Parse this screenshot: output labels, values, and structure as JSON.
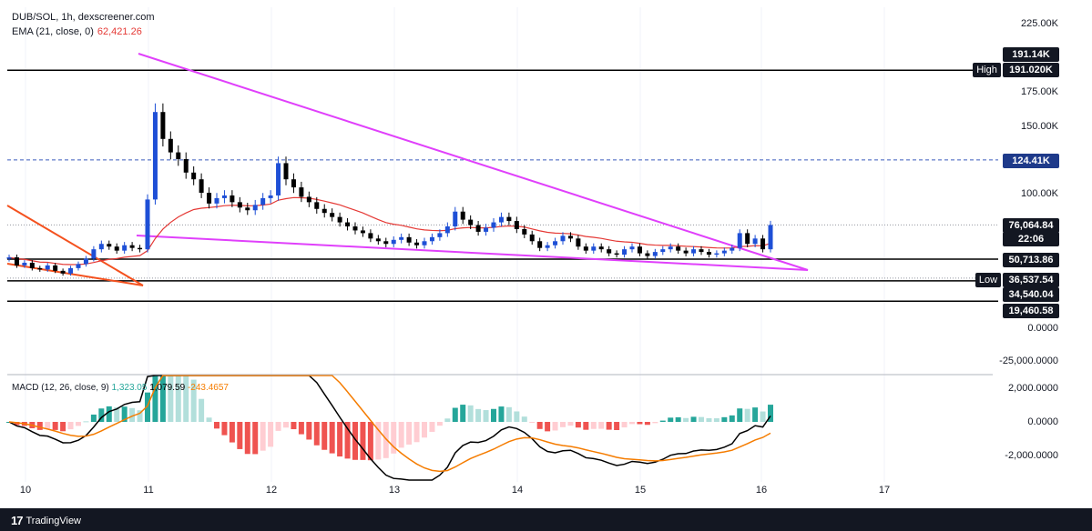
{
  "header": {
    "symbol_line": "DUB/SOL, 1h, dexscreener.com",
    "ema_label": "EMA (21, close, 0)",
    "ema_value": "62,421.26"
  },
  "macd": {
    "label": "MACD (12, 26, close, 9)",
    "value_histogram": "1,323.05",
    "value_macd": "1,079.59",
    "value_signal": "-243.4657"
  },
  "price_axis": [
    "225.00K",
    "175.00K",
    "150.00K",
    "100.00K",
    "0.0000",
    "-25,000.0000"
  ],
  "macd_axis": [
    "2,000.0000",
    "0.0000",
    "-2,000.0000"
  ],
  "tags": {
    "high_price": "191.14K",
    "high_value": "191.020K",
    "high_label": "High",
    "dashed_level": "124.41K",
    "last_price": "76,064.84",
    "countdown": "22:06",
    "support": "50,713.86",
    "low_value": "36,537.54",
    "low_label": "Low",
    "level2": "34,540.04",
    "level3": "19,460.58"
  },
  "x_axis": [
    "10",
    "11",
    "12",
    "13",
    "14",
    "15",
    "16",
    "17"
  ],
  "footer": {
    "brand": "TradingView"
  },
  "colors": {
    "up": "#1e4fd6",
    "down": "#000000",
    "ema": "#e53935",
    "triangle": "#e040fb",
    "wedge": "#f4511e",
    "hist_up_strong": "#26a69a",
    "hist_up_weak": "#b2dfdb",
    "hist_down_strong": "#ef5350",
    "hist_down_weak": "#ffcdd2",
    "macd_line": "#000000",
    "signal_line": "#f57c00"
  },
  "chart_data": {
    "type": "candlestick",
    "title": "DUB/SOL, 1h, dexscreener.com",
    "x": [
      "10",
      "11",
      "12",
      "13",
      "14",
      "15",
      "16",
      "17"
    ],
    "ylim": [
      -25000,
      225000
    ],
    "closes": [
      52000,
      46000,
      48000,
      44000,
      43000,
      46000,
      42000,
      40000,
      44000,
      47000,
      51000,
      58000,
      62000,
      60000,
      57000,
      61000,
      59000,
      58000,
      95000,
      160000,
      140000,
      130000,
      125000,
      115000,
      110000,
      100000,
      92000,
      96000,
      98000,
      93000,
      89000,
      87000,
      91000,
      96000,
      98000,
      122000,
      110000,
      104000,
      97000,
      93000,
      88000,
      85000,
      82000,
      78000,
      75000,
      72000,
      70000,
      66000,
      64000,
      62000,
      65000,
      67000,
      63000,
      61000,
      64000,
      67000,
      70000,
      75000,
      86000,
      80000,
      76000,
      71000,
      74000,
      78000,
      82000,
      79000,
      73000,
      69000,
      64000,
      59000,
      61000,
      64000,
      68000,
      66000,
      60000,
      57000,
      60000,
      58000,
      55000,
      54000,
      58000,
      60000,
      55000,
      53000,
      56000,
      58000,
      60000,
      57000,
      55000,
      58000,
      56000,
      54000,
      55000,
      57000,
      59000,
      70000,
      62000,
      66000,
      58000,
      76064.84
    ],
    "ema": [
      52000,
      51000,
      50500,
      49500,
      48500,
      48300,
      47500,
      46800,
      46600,
      46700,
      47100,
      48200,
      49500,
      50500,
      51100,
      52100,
      52700,
      53300,
      57000,
      66000,
      73000,
      78000,
      82000,
      85000,
      87500,
      88500,
      89000,
      89600,
      90400,
      90700,
      90600,
      90300,
      90400,
      90900,
      91600,
      94500,
      95600,
      96400,
      96300,
      96000,
      95000,
      93800,
      92400,
      91000,
      89000,
      87000,
      85000,
      82500,
      80000,
      77800,
      76600,
      75800,
      74500,
      73200,
      72400,
      72000,
      71800,
      72100,
      73300,
      73900,
      74200,
      73900,
      73900,
      74300,
      75000,
      75300,
      75100,
      74500,
      73100,
      71700,
      70600,
      70000,
      69800,
      69500,
      68600,
      67500,
      66900,
      66100,
      65000,
      64000,
      63500,
      63200,
      62400,
      61500,
      61100,
      60900,
      60900,
      60600,
      60200,
      60000,
      59700,
      59300,
      59000,
      58900,
      59000,
      60000,
      60200,
      60700,
      60600,
      62421.26
    ],
    "levels": {
      "high": 191020,
      "dashed": 124410,
      "last": 76064.84,
      "support": 50713.86,
      "low": 36537.54,
      "level2": 34540.04,
      "level3": 19460.58
    },
    "macd_ylim": [
      -3000,
      3000
    ],
    "macd": {
      "histogram_last": 1323.05,
      "macd_last": 1079.59,
      "signal_last": -243.4657
    }
  }
}
